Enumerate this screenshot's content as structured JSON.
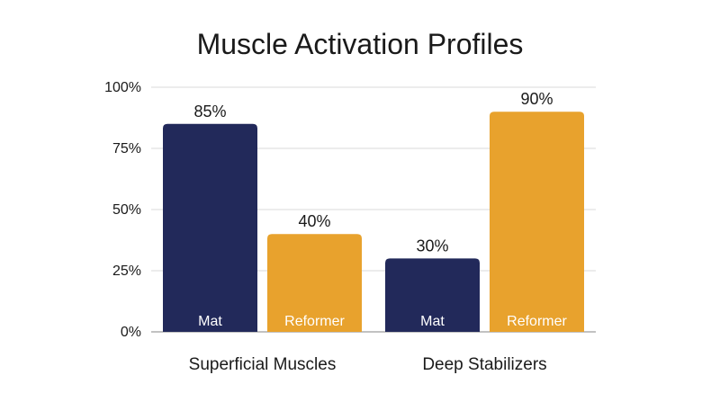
{
  "chart_data": {
    "type": "bar",
    "title": "Muscle Activation Profiles",
    "xlabel": "",
    "ylabel": "",
    "ylim": [
      0,
      100
    ],
    "y_ticks": [
      {
        "value": 0,
        "label": "0%"
      },
      {
        "value": 25,
        "label": "25%"
      },
      {
        "value": 50,
        "label": "50%"
      },
      {
        "value": 75,
        "label": "75%"
      },
      {
        "value": 100,
        "label": "100%"
      }
    ],
    "grid": true,
    "categories": [
      "Superficial Muscles",
      "Deep Stabilizers"
    ],
    "series": [
      {
        "name": "Mat",
        "color": "#22295a",
        "values": [
          85,
          30
        ],
        "value_labels": [
          "85%",
          "30%"
        ]
      },
      {
        "name": "Reformer",
        "color": "#e8a22d",
        "values": [
          40,
          90
        ],
        "value_labels": [
          "40%",
          "90%"
        ]
      }
    ]
  }
}
